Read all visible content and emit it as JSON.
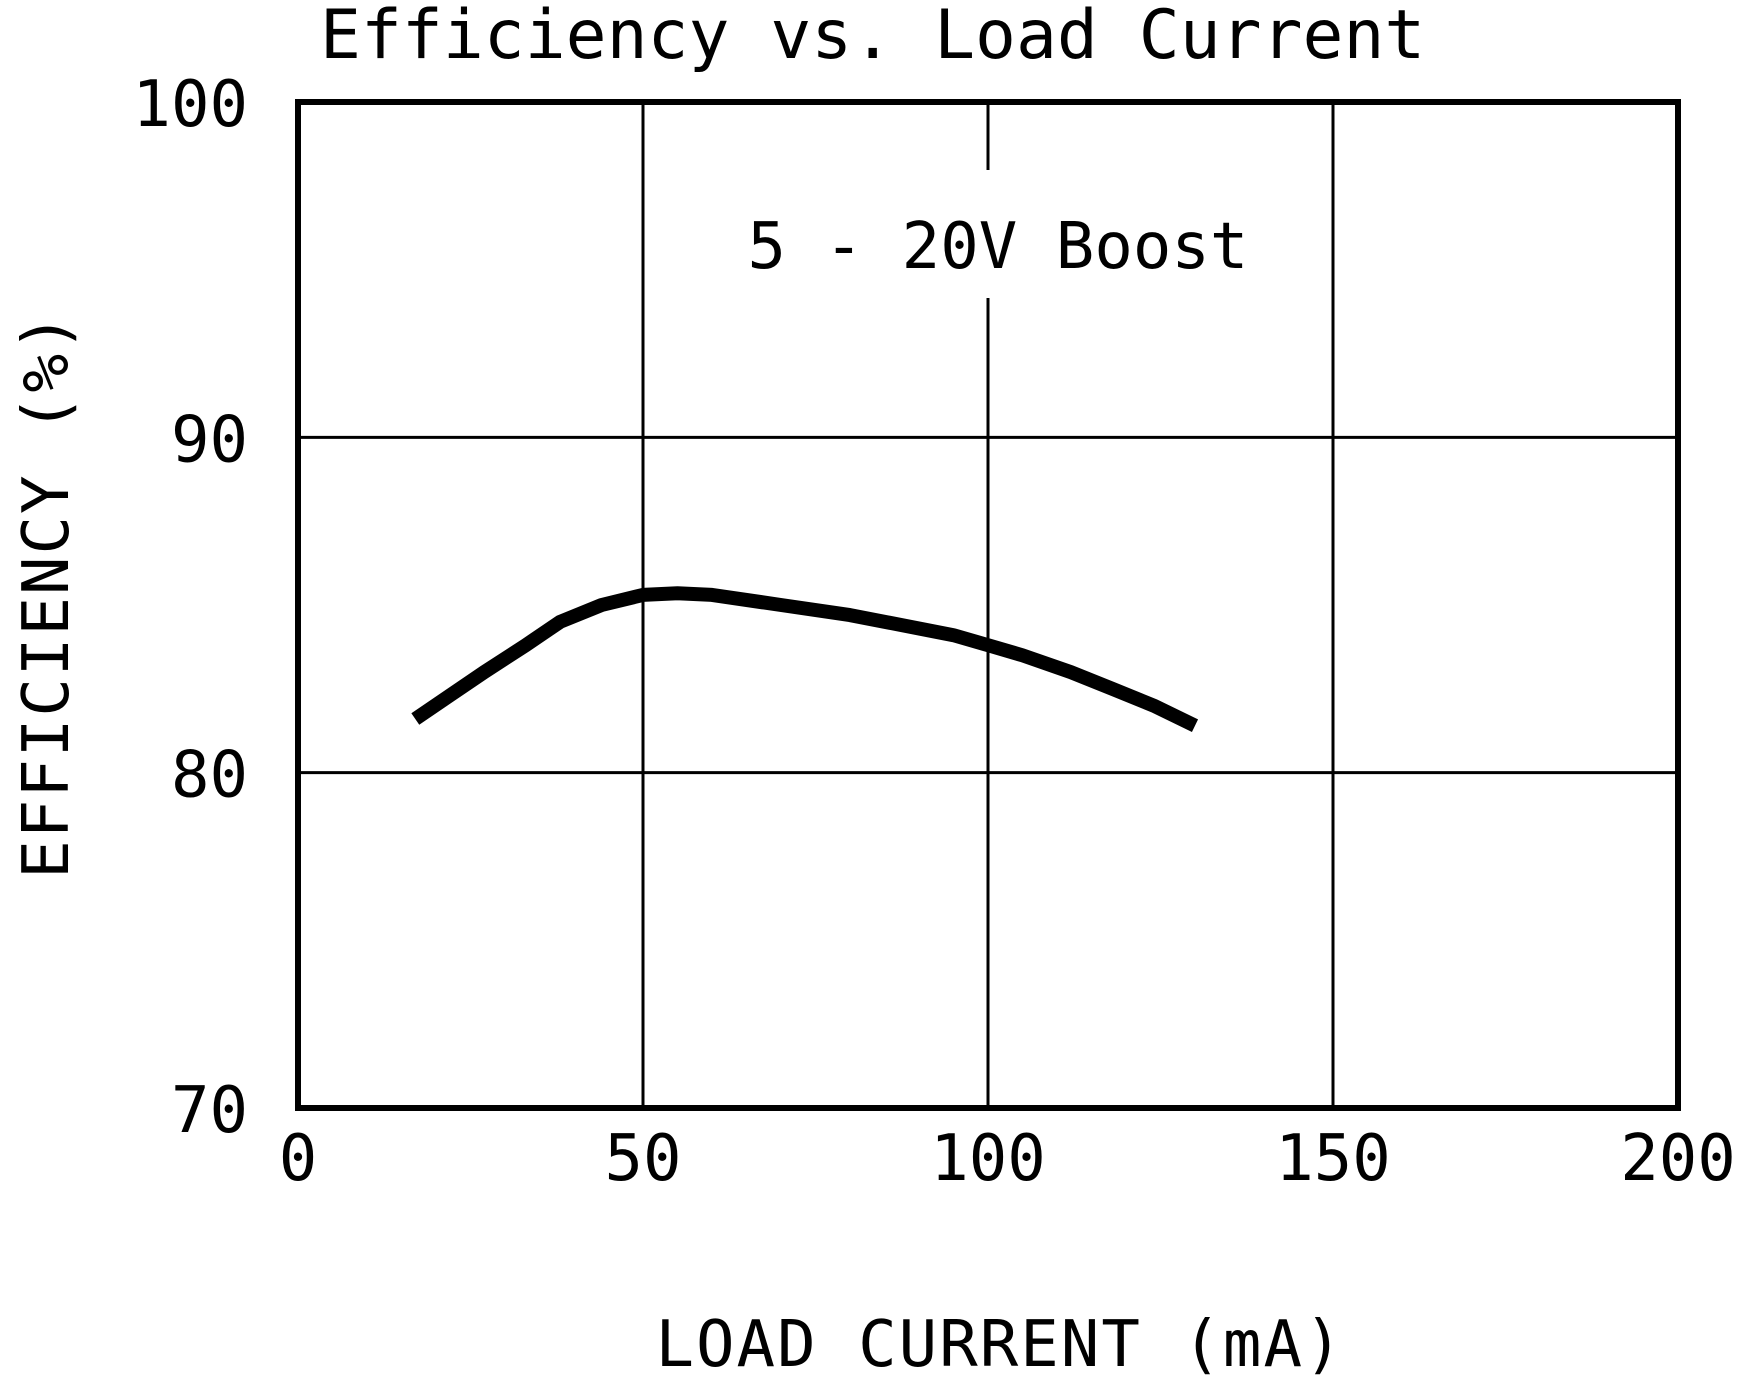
{
  "chart_data": {
    "type": "line",
    "title": "Efficiency vs. Load Current",
    "xlabel": "LOAD CURRENT (mA)",
    "ylabel": "EFFICIENCY (%)",
    "xlim": [
      0,
      200
    ],
    "ylim": [
      70,
      100
    ],
    "xticks": [
      "0",
      "50",
      "100",
      "150",
      "200"
    ],
    "yticks": [
      "70",
      "80",
      "90",
      "100"
    ],
    "grid": true,
    "annotation": "5 - 20V Boost",
    "series": [
      {
        "x": [
          17,
          22,
          27,
          33,
          38,
          44,
          50,
          55,
          60,
          70,
          80,
          90,
          95,
          100,
          105,
          112,
          118,
          124,
          130
        ],
        "y": [
          81.6,
          82.3,
          83.0,
          83.8,
          84.5,
          85.0,
          85.3,
          85.35,
          85.3,
          85.0,
          84.7,
          84.3,
          84.1,
          83.8,
          83.5,
          83.0,
          82.5,
          82.0,
          81.4
        ]
      }
    ],
    "colors": {
      "line": "#000000",
      "grid": "#000000",
      "background": "#ffffff"
    }
  }
}
